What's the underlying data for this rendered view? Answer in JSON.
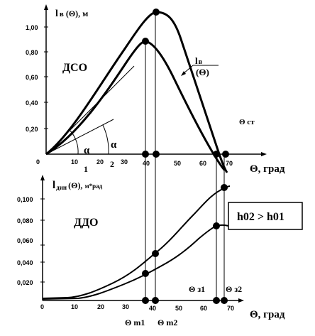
{
  "top": {
    "title_main": "l",
    "title_sub": "в",
    "title_rest": "(Θ), м",
    "section_label": "ДСО",
    "y_ticks": [
      "1,00",
      "0,80",
      "0,60",
      "0,40",
      "0,20"
    ],
    "x_ticks": [
      "0",
      "10",
      "20",
      "30",
      "40",
      "50",
      "60",
      "70"
    ],
    "x_axis_label": "Θ, град",
    "curve_label_top": "l",
    "curve_label_sub": "в",
    "curve_label_bottom": "(Θ)",
    "theta_st": "Θ ст",
    "alpha_left": "α",
    "alpha_right": "α",
    "tangent_1": "1",
    "tangent_2": "2"
  },
  "bottom": {
    "title_main": "l",
    "title_sub": "дин",
    "title_rest": "(Θ),",
    "title_units": "м*рад",
    "section_label": "ДДО",
    "y_ticks": [
      "0,100",
      "0,080",
      "0,060",
      "0,040",
      "0,020"
    ],
    "x_ticks": [
      "0",
      "10",
      "20",
      "30",
      "40",
      "50",
      "60",
      "70"
    ],
    "x_axis_label": "Θ, град",
    "relation_box": "h02 > h01",
    "theta_z1": "Θ з1",
    "theta_z2": "Θ з2",
    "theta_m1": "Θ m1",
    "theta_m2": "Θ m2"
  },
  "chart_data": [
    {
      "type": "line",
      "title": "l в (Θ), м",
      "xlabel": "Θ, град",
      "ylabel": "l в (Θ), м",
      "xlim": [
        0,
        75
      ],
      "ylim": [
        0,
        1.15
      ],
      "series": [
        {
          "name": "h02",
          "x": [
            0,
            10,
            20,
            30,
            35,
            40,
            42,
            45,
            50,
            55,
            60,
            65,
            68
          ],
          "y": [
            0,
            0.22,
            0.52,
            0.85,
            1.0,
            1.1,
            1.12,
            1.1,
            0.95,
            0.72,
            0.4,
            0.08,
            -0.08
          ]
        },
        {
          "name": "h01",
          "x": [
            0,
            10,
            20,
            30,
            35,
            38,
            40,
            45,
            50,
            55,
            60,
            65,
            67
          ],
          "y": [
            0,
            0.18,
            0.45,
            0.72,
            0.84,
            0.88,
            0.87,
            0.78,
            0.6,
            0.4,
            0.2,
            0.02,
            -0.05
          ]
        }
      ],
      "markers_x": [
        35,
        38,
        42,
        64,
        66
      ]
    },
    {
      "type": "line",
      "title": "l дин (Θ), м*рад",
      "xlabel": "Θ, град",
      "ylabel": "l дин (Θ), м*рад",
      "xlim": [
        0,
        75
      ],
      "ylim": [
        0,
        0.115
      ],
      "series": [
        {
          "name": "h02",
          "x": [
            0,
            10,
            15,
            20,
            25,
            30,
            35,
            40,
            45,
            50,
            55,
            60,
            65,
            68
          ],
          "y": [
            0.002,
            0.003,
            0.006,
            0.012,
            0.018,
            0.025,
            0.033,
            0.046,
            0.063,
            0.08,
            0.093,
            0.104,
            0.11,
            0.112
          ]
        },
        {
          "name": "h01",
          "x": [
            0,
            10,
            15,
            20,
            25,
            30,
            35,
            40,
            45,
            50,
            55,
            60,
            64,
            68
          ],
          "y": [
            0.002,
            0.002,
            0.004,
            0.008,
            0.013,
            0.018,
            0.026,
            0.034,
            0.043,
            0.052,
            0.061,
            0.068,
            0.072,
            0.072
          ]
        }
      ],
      "markers_x": [
        35,
        38,
        64,
        66
      ]
    }
  ]
}
